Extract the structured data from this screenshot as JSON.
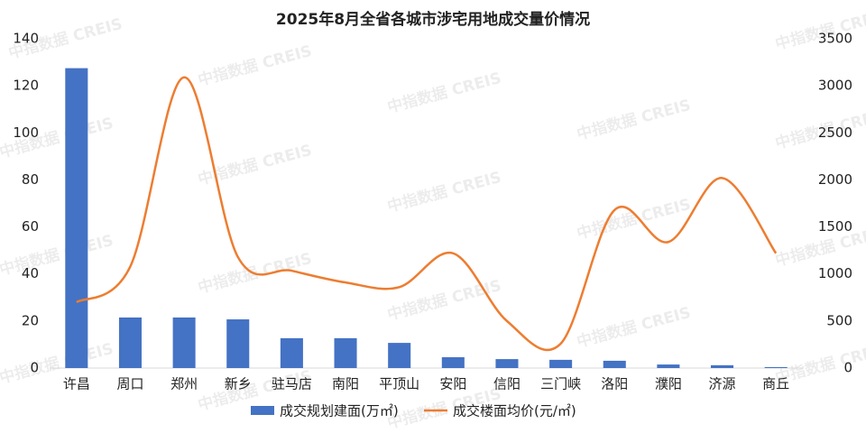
{
  "chart_data": {
    "type": "bar-line",
    "title": "2025年8月全省各城市涉宅用地成交量价情况",
    "watermark": "中指数据 CREIS",
    "categories": [
      "许昌",
      "周口",
      "郑州",
      "新乡",
      "驻马店",
      "南阳",
      "平顶山",
      "安阳",
      "信阳",
      "三门峡",
      "洛阳",
      "濮阳",
      "济源",
      "商丘"
    ],
    "series": [
      {
        "name": "成交规划建面(万㎡)",
        "type": "bar",
        "color": "#4472c4",
        "values": [
          127.5,
          21.5,
          21.5,
          20.7,
          12.7,
          12.7,
          10.7,
          4.6,
          3.8,
          3.5,
          3.1,
          1.5,
          1.2,
          0.4
        ]
      },
      {
        "name": "成交楼面均价(元/㎡)",
        "type": "line",
        "axis": "y2",
        "color": "#ed7d31",
        "values": [
          700,
          1080,
          3090,
          1180,
          1035,
          910,
          860,
          1220,
          500,
          260,
          1680,
          1340,
          2020,
          1220
        ]
      }
    ],
    "ylim": [
      0,
      140
    ],
    "yticks": [
      0,
      20,
      40,
      60,
      80,
      100,
      120,
      140
    ],
    "y2lim": [
      0,
      3500
    ],
    "y2ticks": [
      0,
      500,
      1000,
      1500,
      2000,
      2500,
      3000,
      3500
    ]
  }
}
